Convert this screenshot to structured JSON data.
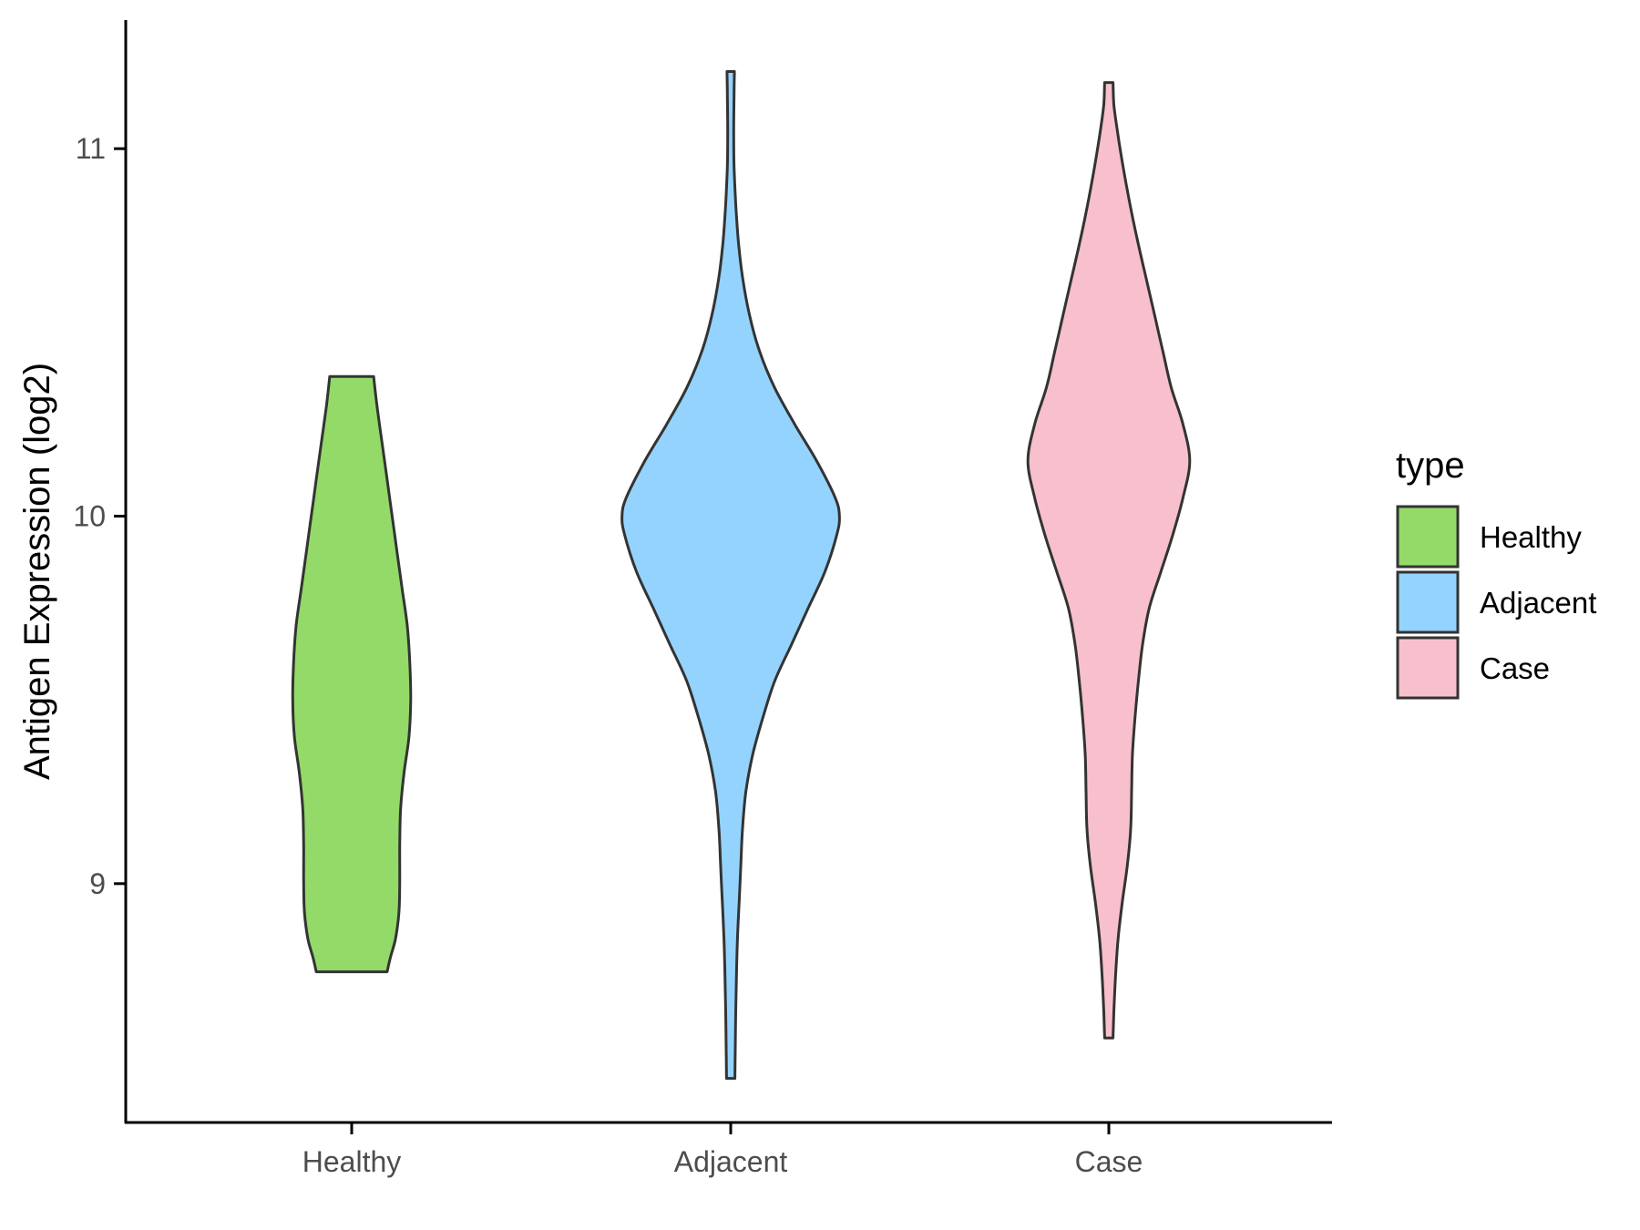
{
  "chart_data": {
    "type": "violin",
    "title": "",
    "xlabel": "",
    "ylabel": "Antigen Expression (log2)",
    "ylim": [
      8.35,
      11.35
    ],
    "yticks": [
      9,
      10,
      11
    ],
    "categories": [
      "Healthy",
      "Adjacent",
      "Case"
    ],
    "colors": {
      "Healthy": "#93da69",
      "Adjacent": "#94d3fd",
      "Case": "#f8c0cc",
      "outline": "#333333"
    },
    "legend": {
      "title": "type",
      "position": "right",
      "entries": [
        "Healthy",
        "Adjacent",
        "Case"
      ]
    },
    "grid": false,
    "series": [
      {
        "name": "Healthy",
        "min": 8.76,
        "max": 10.38,
        "density_profile": [
          [
            8.76,
            0.21
          ],
          [
            8.8,
            0.23
          ],
          [
            8.85,
            0.26
          ],
          [
            8.92,
            0.28
          ],
          [
            9.0,
            0.285
          ],
          [
            9.1,
            0.285
          ],
          [
            9.2,
            0.29
          ],
          [
            9.3,
            0.31
          ],
          [
            9.4,
            0.34
          ],
          [
            9.5,
            0.35
          ],
          [
            9.6,
            0.345
          ],
          [
            9.7,
            0.33
          ],
          [
            9.8,
            0.3
          ],
          [
            9.9,
            0.27
          ],
          [
            10.0,
            0.24
          ],
          [
            10.1,
            0.21
          ],
          [
            10.2,
            0.18
          ],
          [
            10.3,
            0.15
          ],
          [
            10.38,
            0.13
          ]
        ]
      },
      {
        "name": "Adjacent",
        "min": 8.47,
        "max": 11.21,
        "density_profile": [
          [
            8.47,
            0.025
          ],
          [
            8.55,
            0.027
          ],
          [
            8.65,
            0.03
          ],
          [
            8.75,
            0.034
          ],
          [
            8.85,
            0.04
          ],
          [
            8.95,
            0.05
          ],
          [
            9.05,
            0.06
          ],
          [
            9.15,
            0.07
          ],
          [
            9.25,
            0.09
          ],
          [
            9.35,
            0.13
          ],
          [
            9.45,
            0.19
          ],
          [
            9.55,
            0.26
          ],
          [
            9.65,
            0.36
          ],
          [
            9.75,
            0.46
          ],
          [
            9.85,
            0.56
          ],
          [
            9.95,
            0.63
          ],
          [
            10.0,
            0.645
          ],
          [
            10.05,
            0.62
          ],
          [
            10.15,
            0.51
          ],
          [
            10.25,
            0.38
          ],
          [
            10.35,
            0.26
          ],
          [
            10.45,
            0.17
          ],
          [
            10.55,
            0.11
          ],
          [
            10.65,
            0.07
          ],
          [
            10.75,
            0.045
          ],
          [
            10.85,
            0.03
          ],
          [
            10.95,
            0.02
          ],
          [
            11.05,
            0.018
          ],
          [
            11.15,
            0.02
          ],
          [
            11.21,
            0.022
          ]
        ]
      },
      {
        "name": "Case",
        "min": 8.58,
        "max": 11.18,
        "density_profile": [
          [
            8.58,
            0.025
          ],
          [
            8.65,
            0.03
          ],
          [
            8.75,
            0.04
          ],
          [
            8.85,
            0.055
          ],
          [
            8.95,
            0.08
          ],
          [
            9.05,
            0.11
          ],
          [
            9.15,
            0.13
          ],
          [
            9.25,
            0.135
          ],
          [
            9.35,
            0.14
          ],
          [
            9.45,
            0.155
          ],
          [
            9.55,
            0.175
          ],
          [
            9.65,
            0.2
          ],
          [
            9.75,
            0.24
          ],
          [
            9.85,
            0.31
          ],
          [
            9.95,
            0.38
          ],
          [
            10.05,
            0.44
          ],
          [
            10.15,
            0.48
          ],
          [
            10.25,
            0.44
          ],
          [
            10.35,
            0.37
          ],
          [
            10.45,
            0.32
          ],
          [
            10.55,
            0.27
          ],
          [
            10.65,
            0.22
          ],
          [
            10.75,
            0.17
          ],
          [
            10.85,
            0.125
          ],
          [
            10.95,
            0.085
          ],
          [
            11.05,
            0.05
          ],
          [
            11.12,
            0.03
          ],
          [
            11.18,
            0.025
          ]
        ]
      }
    ]
  }
}
